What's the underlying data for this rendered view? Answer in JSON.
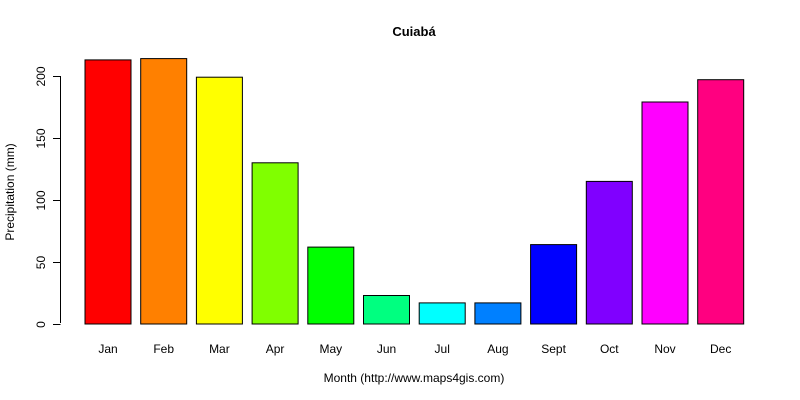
{
  "chart_data": {
    "type": "bar",
    "title": "Cuiabá",
    "xlabel": "Month (http://www.maps4gis.com)",
    "ylabel": "Precipitation (mm)",
    "categories": [
      "Jan",
      "Feb",
      "Mar",
      "Apr",
      "May",
      "Jun",
      "Jul",
      "Aug",
      "Sept",
      "Oct",
      "Nov",
      "Dec"
    ],
    "values": [
      213,
      214,
      199,
      130,
      62,
      23,
      17,
      17,
      64,
      115,
      179,
      197
    ],
    "colors": [
      "#FF0000",
      "#FF8000",
      "#FFFF00",
      "#80FF00",
      "#00FF00",
      "#00FF80",
      "#00FFFF",
      "#0080FF",
      "#0000FF",
      "#8000FF",
      "#FF00FF",
      "#FF0080"
    ],
    "ylim": [
      0,
      200
    ],
    "yticks": [
      0,
      50,
      100,
      150,
      200
    ],
    "grid": false,
    "legend": "none"
  }
}
